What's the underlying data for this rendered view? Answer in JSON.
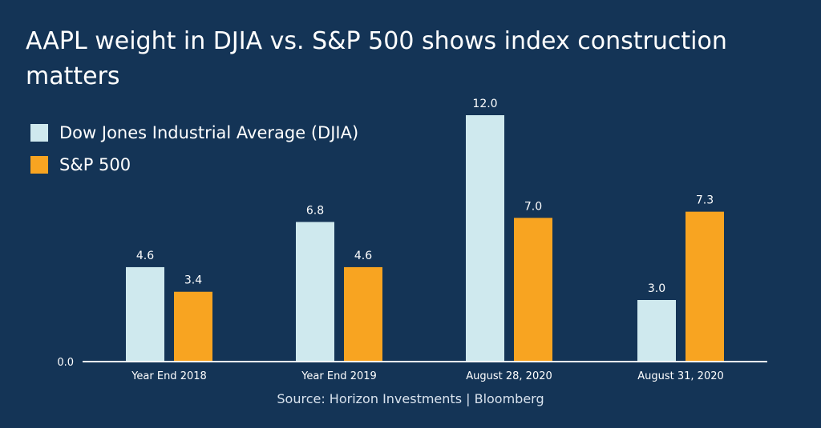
{
  "title": "AAPL weight in DJIA vs. S&P 500 shows index construction matters",
  "source": "Source: Horizon Investments | Bloomberg",
  "colors": {
    "background": "#143456",
    "djia": "#cfe9ee",
    "sp500": "#f8a421",
    "axis": "#ffffff",
    "text": "#ffffff"
  },
  "chart_data": {
    "type": "bar",
    "title": "AAPL weight in DJIA vs. S&P 500 shows index construction matters",
    "categories": [
      "Year End 2018",
      "Year End 2019",
      "August 28, 2020",
      "August 31, 2020"
    ],
    "series": [
      {
        "name": "Dow Jones Industrial Average (DJIA)",
        "values": [
          4.6,
          6.8,
          12.0,
          3.0
        ],
        "labels": [
          "4.6",
          "6.8",
          "12.0",
          "3.0"
        ],
        "color": "#cfe9ee"
      },
      {
        "name": "S&P 500",
        "values": [
          3.4,
          4.6,
          7.0,
          7.3
        ],
        "labels": [
          "3.4",
          "4.6",
          "7.0",
          "7.3"
        ],
        "color": "#f8a421"
      }
    ],
    "ytick_labels": [
      "0.0"
    ],
    "yticks": [
      0
    ],
    "ylim": [
      0,
      12
    ],
    "xlabel": "",
    "ylabel": "",
    "grid": false,
    "legend": "top-left"
  }
}
